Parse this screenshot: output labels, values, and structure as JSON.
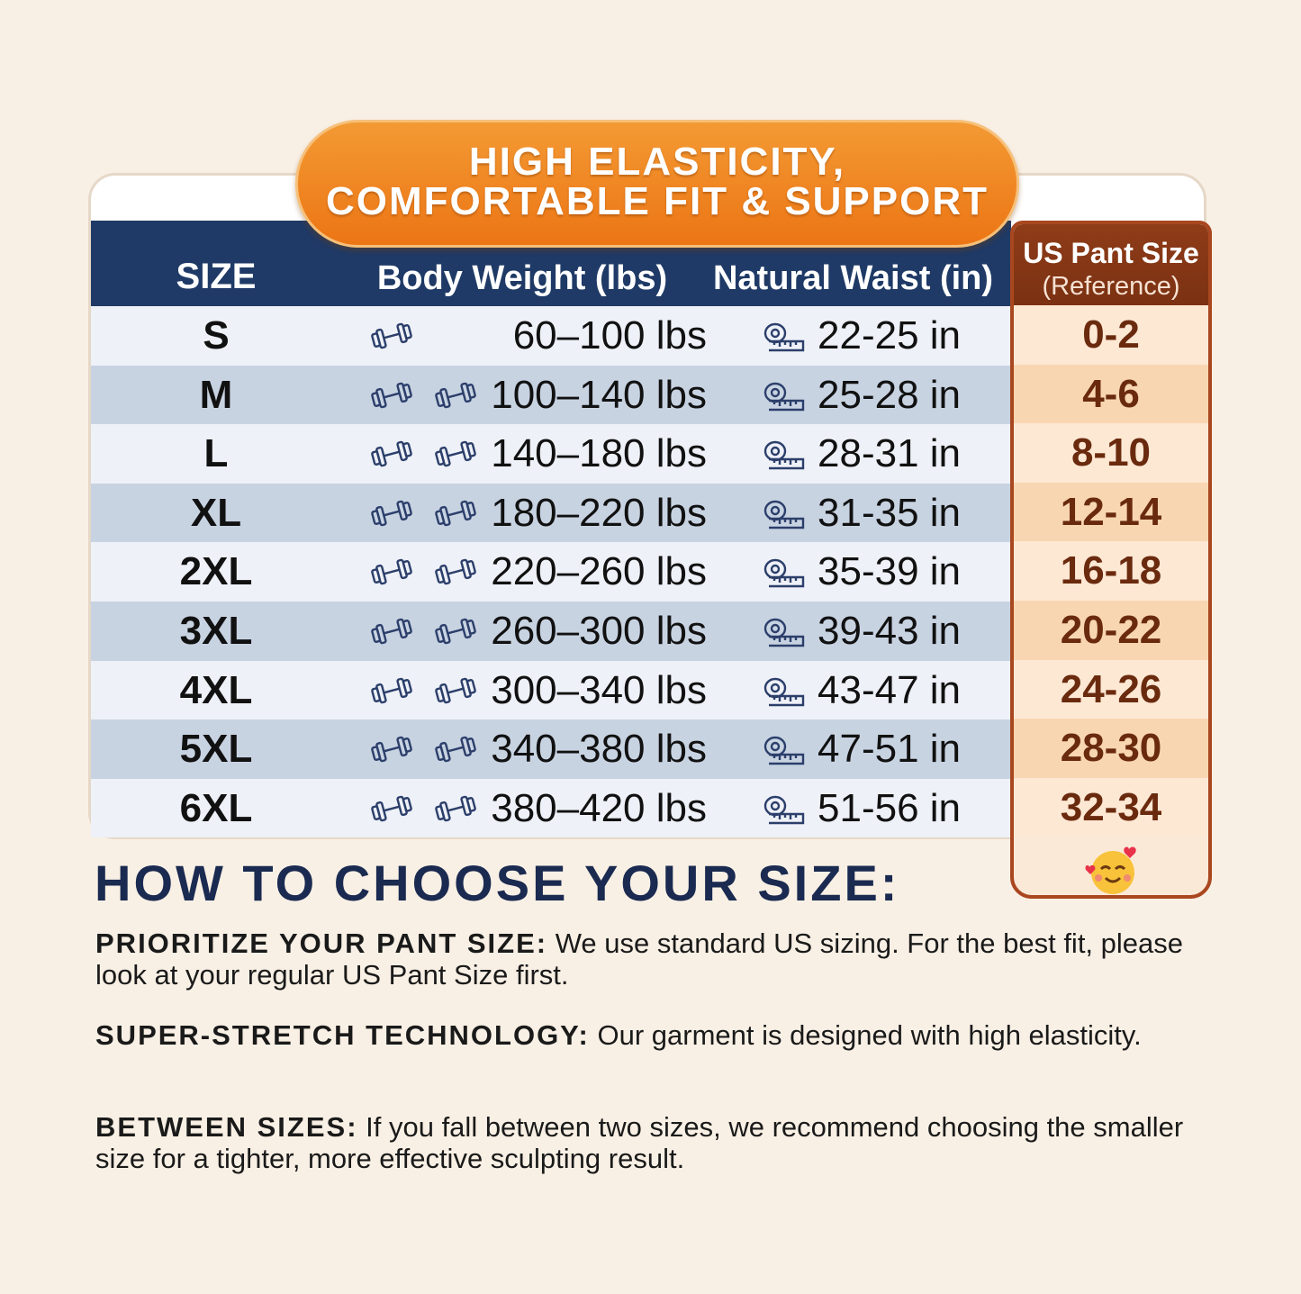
{
  "banner": {
    "lines": [
      "HIGH ELASTICITY,",
      "COMFORTABLE FIT & SUPPORT"
    ]
  },
  "table": {
    "headers": [
      "SIZE",
      "Body Weight (lbs)",
      "Natural Waist (in)"
    ],
    "reference_header": {
      "title": "US Pant Size",
      "subtitle": "(Reference)"
    },
    "rows": [
      [
        "S",
        "60–100 lbs",
        "22-25 in",
        "0-2"
      ],
      [
        "M",
        "100–140 lbs",
        "25-28 in",
        "4-6"
      ],
      [
        "L",
        "140–180 lbs",
        "28-31 in",
        "8-10"
      ],
      [
        "XL",
        "180–220 lbs",
        "31-35 in",
        "12-14"
      ],
      [
        "2XL",
        "220–260 lbs",
        "35-39 in",
        "16-18"
      ],
      [
        "3XL",
        "260–300 lbs",
        "39-43 in",
        "20-22"
      ],
      [
        "4XL",
        "300–340 lbs",
        "43-47 in",
        "24-26"
      ],
      [
        "5XL",
        "340–380 lbs",
        "47-51 in",
        "28-30"
      ],
      [
        "6XL",
        "380–420 lbs",
        "51-56 in",
        "32-34"
      ]
    ]
  },
  "guide": {
    "title": "HOW TO CHOOSE YOUR SIZE:",
    "tips": [
      {
        "label": "PRIORITIZE YOUR PANT SIZE:",
        "text": "We use standard US sizing. For the best fit, please look at your regular US Pant Size first."
      },
      {
        "label": "SUPER-STRETCH TECHNOLOGY:",
        "text": "Our garment is designed with high elasticity."
      },
      {
        "label": "BETWEEN SIZES:",
        "text": "If you fall between two sizes, we recommend choosing the smaller size for a tighter, more effective sculpting result."
      }
    ]
  }
}
